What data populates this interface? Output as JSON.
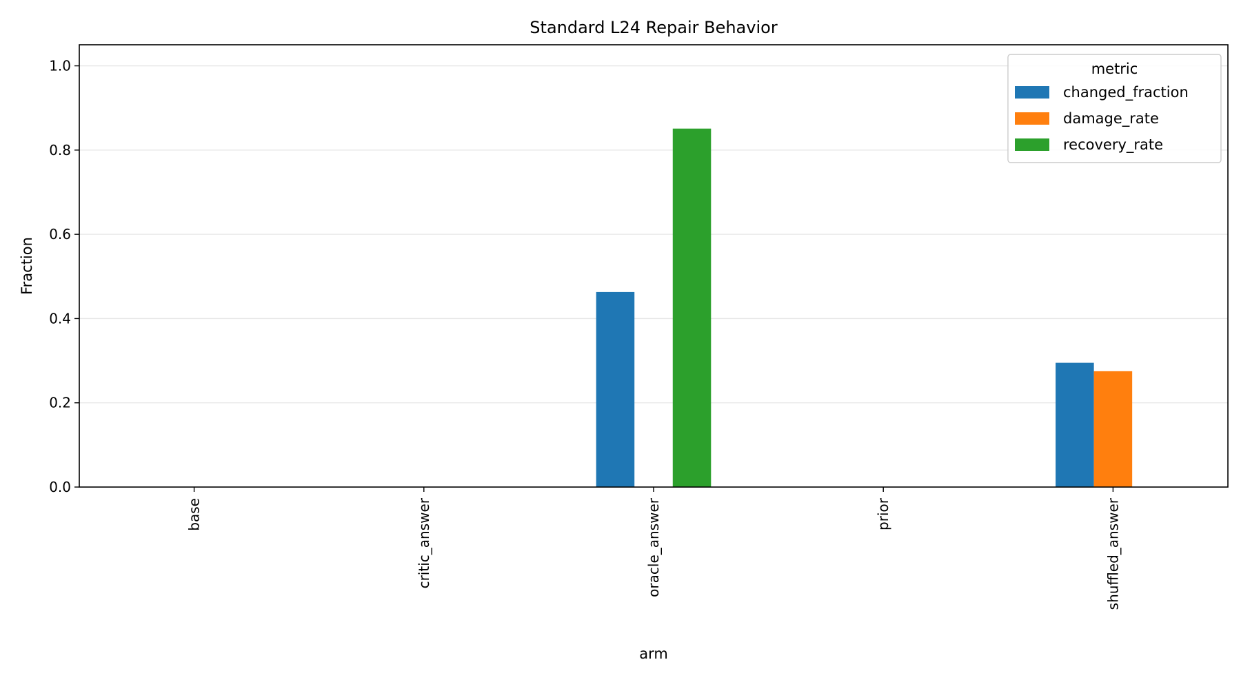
{
  "chart_data": {
    "type": "bar",
    "title": "Standard L24 Repair Behavior",
    "xlabel": "arm",
    "ylabel": "Fraction",
    "ylim": [
      0,
      1.05
    ],
    "yticks": [
      0.0,
      0.2,
      0.4,
      0.6,
      0.8,
      1.0
    ],
    "grid": "y",
    "legend": {
      "title": "metric",
      "placement": "top-right"
    },
    "categories": [
      "base",
      "critic_answer",
      "oracle_answer",
      "prior",
      "shuffled_answer"
    ],
    "series": [
      {
        "name": "changed_fraction",
        "color": "#1f77b4",
        "values": [
          0,
          0,
          0.463,
          0,
          0.295
        ]
      },
      {
        "name": "damage_rate",
        "color": "#ff7f0e",
        "values": [
          0,
          0,
          0,
          0,
          0.275
        ]
      },
      {
        "name": "recovery_rate",
        "color": "#2ca02c",
        "values": [
          0,
          0,
          0.851,
          0,
          0
        ]
      }
    ]
  }
}
